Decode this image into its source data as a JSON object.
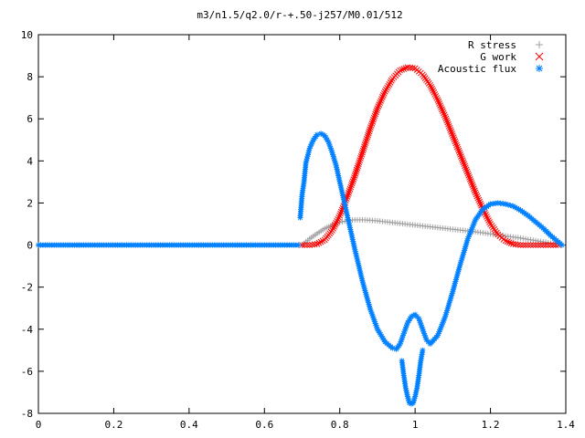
{
  "chart_data": {
    "type": "scatter",
    "title": "m3/n1.5/q2.0/r-+.50-j257/M0.01/512",
    "xlabel": "",
    "ylabel": "",
    "xlim": [
      0,
      1.4
    ],
    "ylim": [
      -8,
      10
    ],
    "xticks": [
      "0",
      "0.2",
      "0.4",
      "0.6",
      "0.8",
      "1",
      "1.2",
      "1.4"
    ],
    "yticks": [
      "-8",
      "-6",
      "-4",
      "-2",
      "0",
      "2",
      "4",
      "6",
      "8",
      "10"
    ],
    "grid": false,
    "legend_position": "top-right",
    "series": [
      {
        "name": "R stress",
        "marker": "+",
        "color": "#a0a0a0",
        "x": [
          0.7,
          0.72,
          0.74,
          0.76,
          0.78,
          0.8,
          0.82,
          0.84,
          0.86,
          0.88,
          0.9,
          0.92,
          0.94,
          0.96,
          0.98,
          1.0,
          1.02,
          1.04,
          1.06,
          1.08,
          1.1,
          1.12,
          1.14,
          1.16,
          1.18,
          1.2,
          1.22,
          1.24,
          1.26,
          1.28,
          1.3,
          1.32,
          1.34,
          1.36,
          1.38,
          1.39
        ],
        "y": [
          0.0,
          0.3,
          0.55,
          0.78,
          0.95,
          1.08,
          1.16,
          1.2,
          1.2,
          1.18,
          1.15,
          1.11,
          1.07,
          1.03,
          0.99,
          0.95,
          0.91,
          0.87,
          0.83,
          0.79,
          0.75,
          0.71,
          0.67,
          0.63,
          0.58,
          0.53,
          0.48,
          0.43,
          0.38,
          0.33,
          0.27,
          0.21,
          0.15,
          0.09,
          0.04,
          0.0
        ]
      },
      {
        "name": "G work",
        "marker": "x",
        "color": "#ff0000",
        "x": [
          0.7,
          0.72,
          0.74,
          0.76,
          0.78,
          0.8,
          0.82,
          0.84,
          0.86,
          0.88,
          0.9,
          0.92,
          0.94,
          0.96,
          0.98,
          1.0,
          1.02,
          1.04,
          1.06,
          1.08,
          1.1,
          1.12,
          1.14,
          1.16,
          1.18,
          1.2,
          1.22,
          1.24,
          1.26,
          1.28,
          1.3,
          1.32,
          1.34,
          1.36,
          1.38
        ],
        "y": [
          0.0,
          0.0,
          0.05,
          0.25,
          0.7,
          1.4,
          2.3,
          3.3,
          4.4,
          5.5,
          6.5,
          7.3,
          7.9,
          8.3,
          8.45,
          8.4,
          8.1,
          7.6,
          6.9,
          6.1,
          5.2,
          4.3,
          3.4,
          2.5,
          1.7,
          1.0,
          0.5,
          0.2,
          0.05,
          0.0,
          0.0,
          0.0,
          0.0,
          0.0,
          0.0
        ]
      },
      {
        "name": "Acoustic flux",
        "marker": "*",
        "color": "#0080ff",
        "x": [
          0.695,
          0.7,
          0.705,
          0.71,
          0.72,
          0.73,
          0.74,
          0.75,
          0.76,
          0.77,
          0.78,
          0.79,
          0.8,
          0.82,
          0.84,
          0.86,
          0.88,
          0.9,
          0.92,
          0.94,
          0.95,
          0.96,
          0.97,
          0.98,
          0.99,
          1.0,
          1.01,
          1.02,
          1.03,
          1.04,
          1.06,
          1.08,
          1.1,
          1.12,
          1.14,
          1.16,
          1.18,
          1.2,
          1.22,
          1.24,
          1.26,
          1.28,
          1.3,
          1.32,
          1.34,
          1.36,
          1.38,
          1.39
        ],
        "y": [
          1.3,
          2.4,
          3.0,
          3.9,
          4.6,
          5.0,
          5.25,
          5.3,
          5.2,
          4.9,
          4.4,
          3.8,
          3.0,
          1.4,
          -0.2,
          -1.7,
          -3.0,
          -4.0,
          -4.6,
          -4.9,
          -4.95,
          -4.7,
          -4.2,
          -3.7,
          -3.4,
          -3.3,
          -3.5,
          -4.0,
          -4.5,
          -4.7,
          -4.3,
          -3.4,
          -2.2,
          -0.9,
          0.3,
          1.2,
          1.7,
          1.95,
          2.0,
          1.95,
          1.85,
          1.65,
          1.4,
          1.1,
          0.8,
          0.45,
          0.15,
          0.0
        ]
      },
      {
        "name": "",
        "marker": "*",
        "color": "#0080ff",
        "x": [
          0.965,
          0.97,
          0.975,
          0.98,
          0.985,
          0.99,
          0.995,
          1.0,
          1.005,
          1.01,
          1.015,
          1.02
        ],
        "y": [
          -5.5,
          -6.2,
          -6.8,
          -7.2,
          -7.5,
          -7.55,
          -7.5,
          -7.2,
          -6.8,
          -6.2,
          -5.5,
          -5.0
        ]
      },
      {
        "name": "",
        "marker": "*",
        "color": "#0080ff",
        "x": [
          0.0,
          0.03,
          0.06,
          0.09,
          0.12,
          0.15,
          0.18,
          0.21,
          0.24,
          0.27,
          0.3,
          0.33,
          0.36,
          0.39,
          0.42,
          0.45,
          0.48,
          0.51,
          0.54,
          0.57,
          0.6,
          0.63,
          0.66,
          0.69
        ],
        "y": [
          0,
          0,
          0,
          0,
          0,
          0,
          0,
          0,
          0,
          0,
          0,
          0,
          0,
          0,
          0,
          0,
          0,
          0,
          0,
          0,
          0,
          0,
          0,
          0
        ]
      }
    ]
  }
}
